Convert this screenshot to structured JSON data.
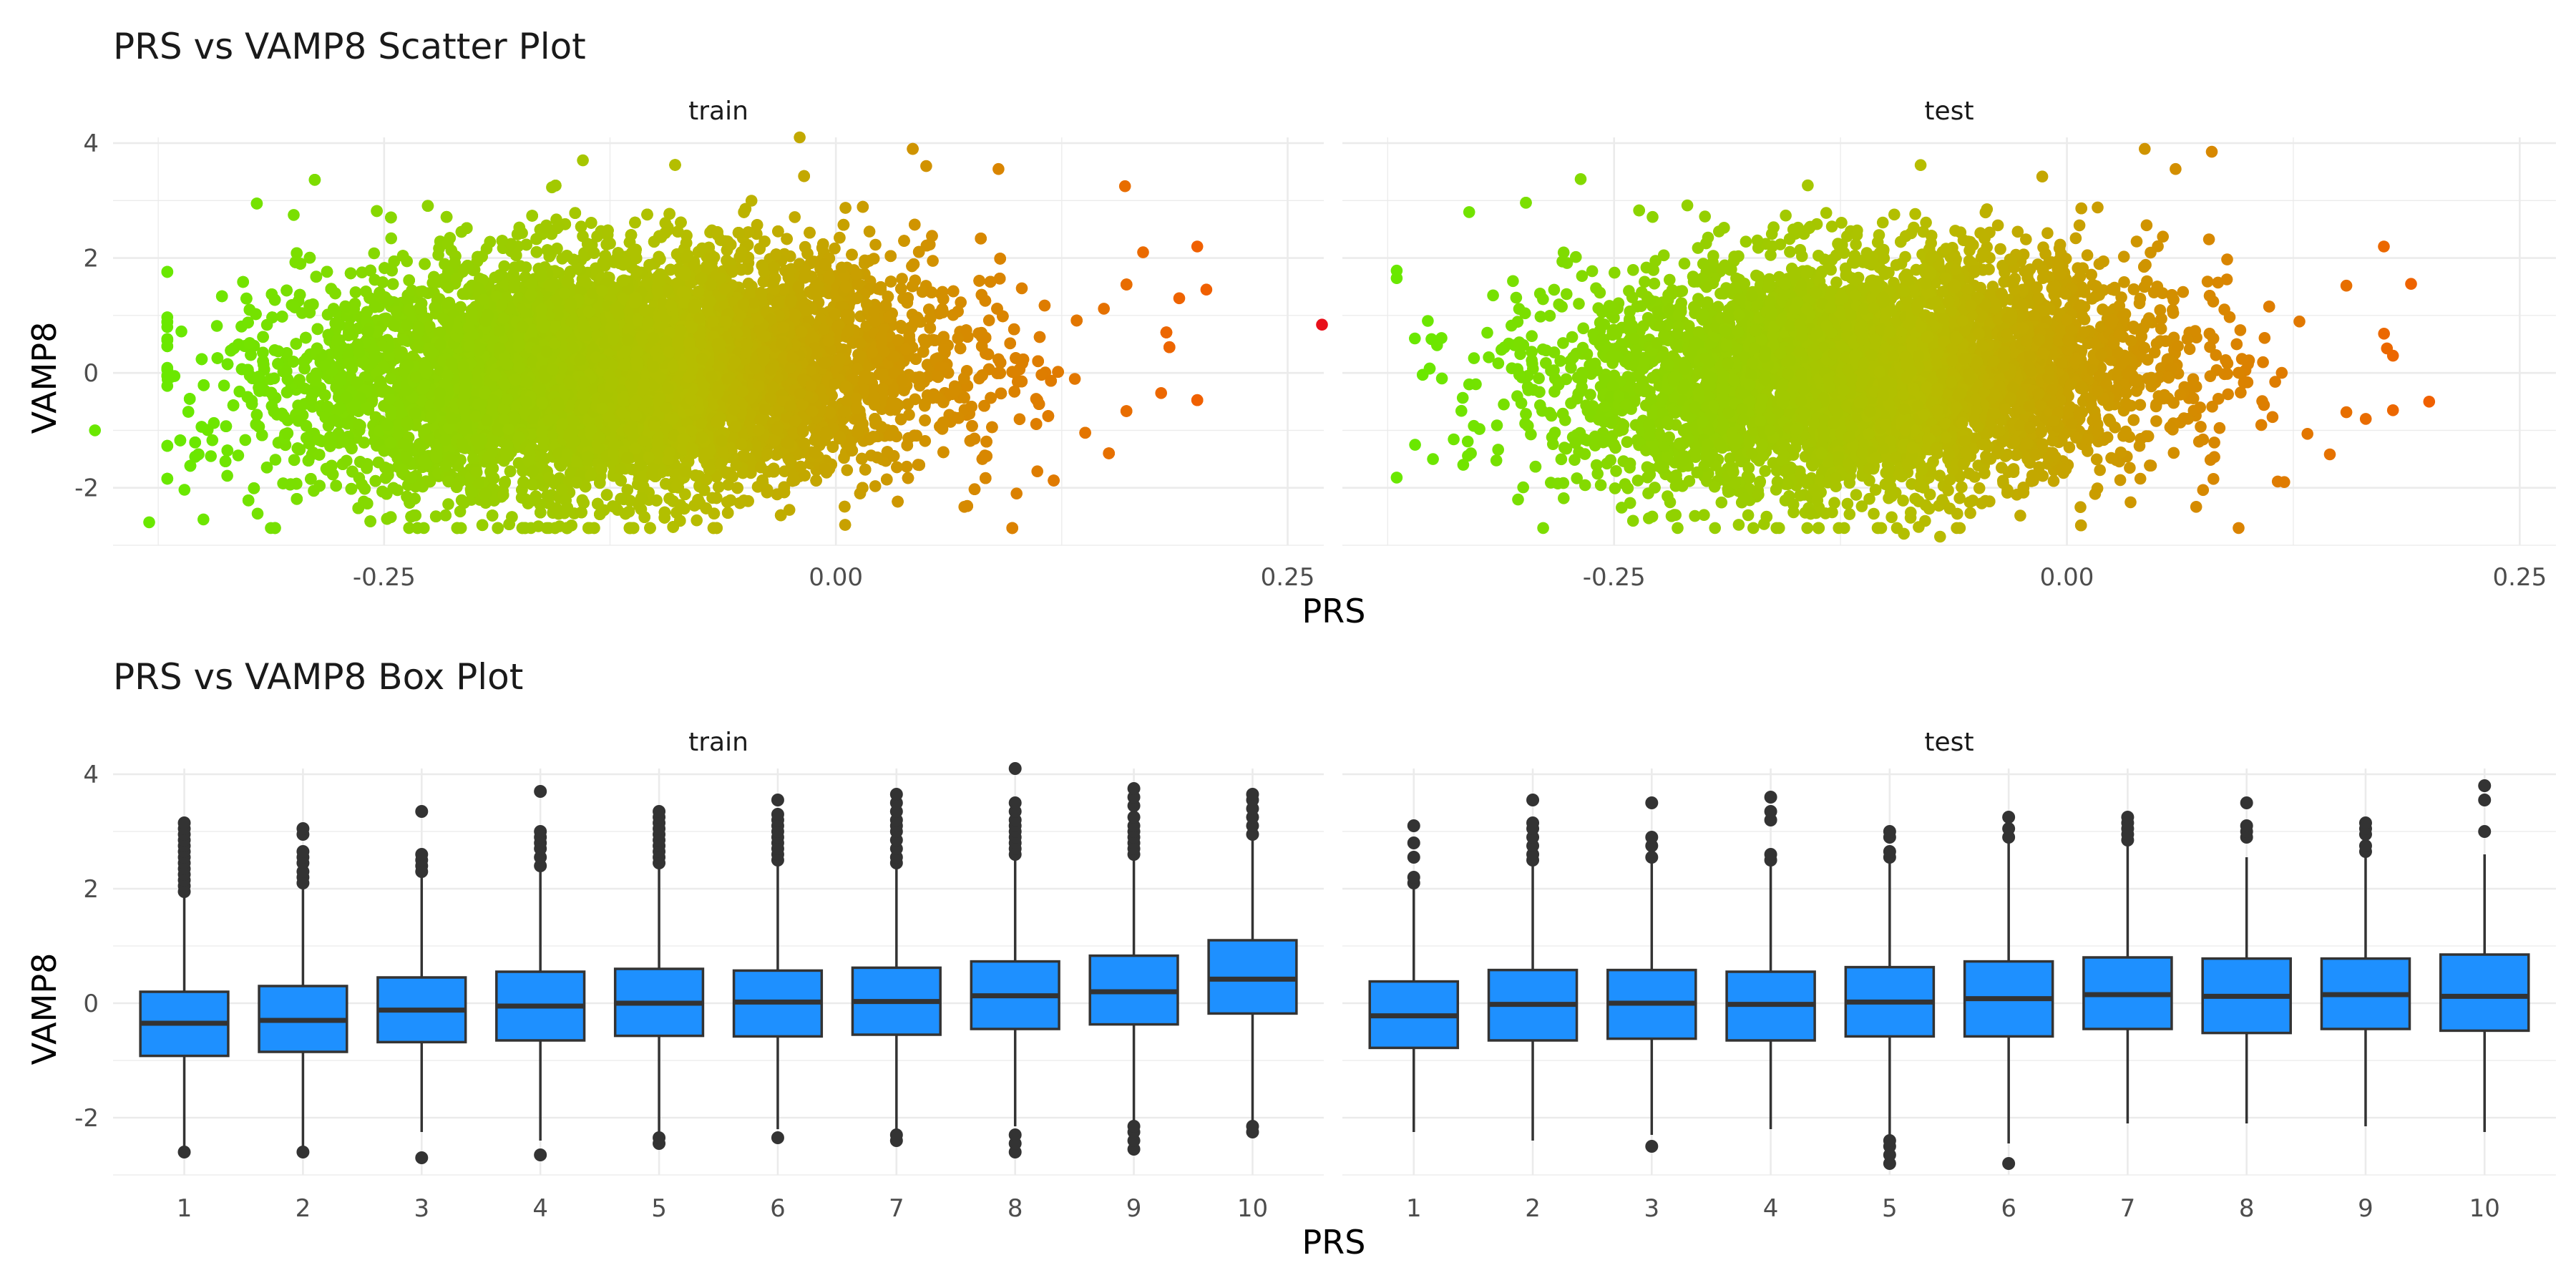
{
  "palette": {
    "low": "#6ae800",
    "mid": "#b6bd00",
    "high": "#f06000",
    "max": "#e8101a",
    "box_fill": "#1e90ff",
    "box_line": "#333333"
  },
  "chart_data": [
    {
      "type": "scatter",
      "title": "PRS vs VAMP8 Scatter Plot",
      "xlabel": "PRS",
      "ylabel": "VAMP8",
      "xlim": [
        -0.4,
        0.27
      ],
      "ylim": [
        -3.0,
        4.1
      ],
      "x_ticks": [
        -0.25,
        0.0,
        0.25
      ],
      "x_tick_labels": [
        "-0.25",
        "0.00",
        "0.25"
      ],
      "y_ticks": [
        -2,
        0,
        2,
        4
      ],
      "y_tick_labels": [
        "-2",
        "0",
        "2",
        "4"
      ],
      "color_encodes": "PRS",
      "grid": true,
      "legend": "none",
      "panels": [
        {
          "strip": "train",
          "n_points": 16000,
          "prs_mean": -0.12,
          "prs_sd": 0.085,
          "vamp8_mean": 0.0,
          "vamp8_sd": 1.0,
          "extremes": [
            {
              "x": 0.269,
              "y": 0.84
            },
            {
              "x": -0.41,
              "y": -1.0
            },
            {
              "x": -0.38,
              "y": -2.6
            },
            {
              "x": -0.35,
              "y": -2.55
            },
            {
              "x": -0.14,
              "y": 3.7
            },
            {
              "x": -0.02,
              "y": 4.1
            },
            {
              "x": 0.09,
              "y": 3.55
            },
            {
              "x": 0.2,
              "y": 2.2
            },
            {
              "x": 0.205,
              "y": 1.45
            },
            {
              "x": 0.18,
              "y": -0.35
            },
            {
              "x": -0.16,
              "y": -2.7
            },
            {
              "x": 0.16,
              "y": 3.25
            },
            {
              "x": 0.1,
              "y": -2.1
            },
            {
              "x": 0.05,
              "y": 3.6
            },
            {
              "x": -0.3,
              "y": 2.75
            },
            {
              "x": -0.32,
              "y": -2.45
            },
            {
              "x": 0.19,
              "y": 1.3
            },
            {
              "x": 0.17,
              "y": 2.1
            }
          ]
        },
        {
          "strip": "test",
          "n_points": 5600,
          "prs_mean": -0.11,
          "prs_sd": 0.08,
          "vamp8_mean": 0.0,
          "vamp8_sd": 1.0,
          "extremes": [
            {
              "x": -0.36,
              "y": 0.6
            },
            {
              "x": -0.35,
              "y": -1.5
            },
            {
              "x": -0.33,
              "y": -0.2
            },
            {
              "x": -0.32,
              "y": 0.7
            },
            {
              "x": 0.19,
              "y": 1.55
            },
            {
              "x": 0.175,
              "y": 2.2
            },
            {
              "x": 0.18,
              "y": -0.65
            },
            {
              "x": 0.165,
              "y": -0.8
            },
            {
              "x": 0.12,
              "y": -1.9
            },
            {
              "x": 0.08,
              "y": 3.85
            },
            {
              "x": -0.09,
              "y": -2.8
            },
            {
              "x": -0.07,
              "y": -2.85
            },
            {
              "x": -0.37,
              "y": 1.65
            },
            {
              "x": 0.06,
              "y": 3.55
            },
            {
              "x": -0.33,
              "y": 2.8
            },
            {
              "x": 0.18,
              "y": 0.3
            }
          ]
        }
      ]
    },
    {
      "type": "box",
      "title": "PRS vs VAMP8 Box Plot",
      "xlabel": "PRS",
      "ylabel": "VAMP8",
      "categories": [
        "1",
        "2",
        "3",
        "4",
        "5",
        "6",
        "7",
        "8",
        "9",
        "10"
      ],
      "ylim": [
        -3.0,
        4.1
      ],
      "y_ticks": [
        -2,
        0,
        2,
        4
      ],
      "y_tick_labels": [
        "-2",
        "0",
        "2",
        "4"
      ],
      "grid": true,
      "panels": [
        {
          "strip": "train",
          "boxes": [
            {
              "q1": -0.92,
              "median": -0.35,
              "q3": 0.2,
              "low": -2.5,
              "high": 1.9,
              "outliers": [
                -2.6,
                1.95,
                2.05,
                2.15,
                2.25,
                2.35,
                2.45,
                2.55,
                2.65,
                2.75,
                2.85,
                2.95,
                3.05,
                3.15
              ]
            },
            {
              "q1": -0.85,
              "median": -0.3,
              "q3": 0.3,
              "low": -2.5,
              "high": 2.05,
              "outliers": [
                -2.6,
                2.1,
                2.2,
                2.3,
                2.45,
                2.55,
                2.65,
                2.95,
                3.05
              ]
            },
            {
              "q1": -0.68,
              "median": -0.12,
              "q3": 0.45,
              "low": -2.25,
              "high": 2.2,
              "outliers": [
                -2.7,
                2.3,
                2.4,
                2.5,
                2.6,
                3.35
              ]
            },
            {
              "q1": -0.65,
              "median": -0.05,
              "q3": 0.55,
              "low": -2.4,
              "high": 2.35,
              "outliers": [
                -2.65,
                2.4,
                2.55,
                2.7,
                2.8,
                2.9,
                3.0,
                3.7
              ]
            },
            {
              "q1": -0.57,
              "median": 0.0,
              "q3": 0.6,
              "low": -2.3,
              "high": 2.4,
              "outliers": [
                -2.45,
                -2.35,
                2.45,
                2.55,
                2.65,
                2.75,
                2.85,
                2.95,
                3.05,
                3.15,
                3.25,
                3.35
              ]
            },
            {
              "q1": -0.58,
              "median": 0.02,
              "q3": 0.57,
              "low": -2.2,
              "high": 2.45,
              "outliers": [
                -2.35,
                2.5,
                2.6,
                2.7,
                2.8,
                2.9,
                3.0,
                3.1,
                3.2,
                3.3,
                3.55
              ]
            },
            {
              "q1": -0.55,
              "median": 0.03,
              "q3": 0.62,
              "low": -2.3,
              "high": 2.4,
              "outliers": [
                -2.4,
                -2.3,
                2.45,
                2.55,
                2.7,
                2.85,
                3.0,
                3.1,
                3.2,
                3.35,
                3.5,
                3.65
              ]
            },
            {
              "q1": -0.45,
              "median": 0.13,
              "q3": 0.73,
              "low": -2.15,
              "high": 2.55,
              "outliers": [
                -2.6,
                -2.45,
                -2.3,
                2.6,
                2.7,
                2.8,
                2.9,
                3.0,
                3.1,
                3.2,
                3.35,
                3.5,
                4.1
              ]
            },
            {
              "q1": -0.37,
              "median": 0.2,
              "q3": 0.83,
              "low": -2.1,
              "high": 2.55,
              "outliers": [
                -2.55,
                -2.4,
                -2.25,
                -2.15,
                2.6,
                2.7,
                2.8,
                2.9,
                3.0,
                3.1,
                3.25,
                3.45,
                3.6,
                3.75
              ]
            },
            {
              "q1": -0.18,
              "median": 0.42,
              "q3": 1.1,
              "low": -2.1,
              "high": 2.9,
              "outliers": [
                -2.25,
                -2.15,
                2.95,
                3.1,
                3.25,
                3.4,
                3.55,
                3.65
              ]
            }
          ]
        },
        {
          "strip": "test",
          "boxes": [
            {
              "q1": -0.78,
              "median": -0.22,
              "q3": 0.38,
              "low": -2.25,
              "high": 2.0,
              "outliers": [
                2.1,
                2.2,
                2.55,
                2.8,
                3.1
              ]
            },
            {
              "q1": -0.65,
              "median": -0.02,
              "q3": 0.58,
              "low": -2.4,
              "high": 2.4,
              "outliers": [
                2.5,
                2.6,
                2.75,
                2.9,
                3.05,
                3.15,
                3.55
              ]
            },
            {
              "q1": -0.62,
              "median": 0.0,
              "q3": 0.58,
              "low": -2.3,
              "high": 2.45,
              "outliers": [
                -2.5,
                2.55,
                2.75,
                2.9,
                3.5
              ]
            },
            {
              "q1": -0.65,
              "median": -0.02,
              "q3": 0.55,
              "low": -2.2,
              "high": 2.4,
              "outliers": [
                2.5,
                2.6,
                3.2,
                3.35,
                3.6
              ]
            },
            {
              "q1": -0.58,
              "median": 0.02,
              "q3": 0.63,
              "low": -2.3,
              "high": 2.45,
              "outliers": [
                -2.8,
                -2.65,
                -2.5,
                -2.4,
                2.55,
                2.65,
                2.9,
                3.0
              ]
            },
            {
              "q1": -0.58,
              "median": 0.08,
              "q3": 0.73,
              "low": -2.45,
              "high": 2.8,
              "outliers": [
                -2.8,
                2.9,
                3.05,
                3.25
              ]
            },
            {
              "q1": -0.45,
              "median": 0.15,
              "q3": 0.8,
              "low": -2.1,
              "high": 2.75,
              "outliers": [
                2.85,
                2.95,
                3.05,
                3.15,
                3.25
              ]
            },
            {
              "q1": -0.52,
              "median": 0.12,
              "q3": 0.78,
              "low": -2.1,
              "high": 2.55,
              "outliers": [
                2.9,
                3.0,
                3.1,
                3.5
              ]
            },
            {
              "q1": -0.45,
              "median": 0.15,
              "q3": 0.78,
              "low": -2.15,
              "high": 2.6,
              "outliers": [
                2.65,
                2.75,
                2.95,
                3.05,
                3.15
              ]
            },
            {
              "q1": -0.48,
              "median": 0.12,
              "q3": 0.85,
              "low": -2.25,
              "high": 2.6,
              "outliers": [
                3.0,
                3.55,
                3.8
              ]
            }
          ]
        }
      ]
    }
  ]
}
